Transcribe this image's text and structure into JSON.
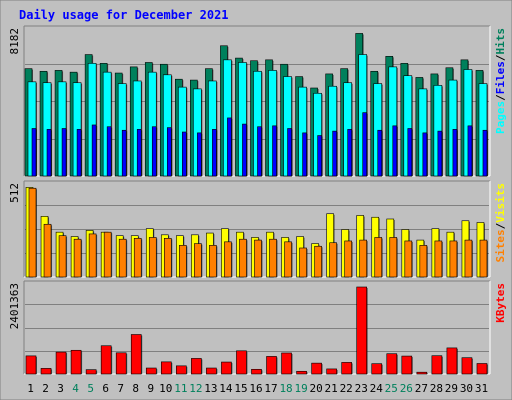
{
  "colors": {
    "background": "#c0c0c0",
    "title": "#0000ff",
    "hits": "#00805c",
    "files": "#00c0ff",
    "pages": "#00ffff",
    "visits": "#ffff00",
    "sites": "#ff8000",
    "kbytes": "#ff0000",
    "weekend_day": "#00805c",
    "weekday": "#000000"
  },
  "chart_data": {
    "type": "bar",
    "title": "Daily usage for December 2021",
    "days": [
      "1",
      "2",
      "3",
      "4",
      "5",
      "6",
      "7",
      "8",
      "9",
      "10",
      "11",
      "12",
      "13",
      "14",
      "15",
      "16",
      "17",
      "18",
      "19",
      "20",
      "21",
      "22",
      "23",
      "24",
      "25",
      "26",
      "27",
      "28",
      "29",
      "30",
      "31"
    ],
    "weekend_days": [
      "4",
      "5",
      "11",
      "12",
      "18",
      "19",
      "25",
      "26"
    ],
    "panels": [
      {
        "name": "hits-files-pages",
        "ymax": 8182,
        "ymax_label": "8182",
        "legend": [
          {
            "label": "Pages",
            "color": "#00ffff"
          },
          {
            "label": "/",
            "color": "#000000"
          },
          {
            "label": "Files",
            "color": "#0000ff"
          },
          {
            "label": "/",
            "color": "#000000"
          },
          {
            "label": "Hits",
            "color": "#00805c"
          }
        ],
        "series": [
          {
            "name": "Hits",
            "color": "#00805c",
            "values": [
              6100,
              5950,
              6000,
              5900,
              6900,
              6400,
              5850,
              6200,
              6450,
              6350,
              5500,
              5450,
              6100,
              7400,
              6700,
              6550,
              6600,
              6350,
              5650,
              5000,
              5800,
              6100,
              8100,
              5950,
              6800,
              6400,
              5600,
              5800,
              6150,
              6600,
              6000
            ]
          },
          {
            "name": "Files",
            "color": "#00ffff",
            "values": [
              5350,
              5300,
              5350,
              5300,
              6400,
              5900,
              5250,
              5400,
              5900,
              5750,
              5050,
              4950,
              5400,
              6600,
              6450,
              5950,
              6000,
              5650,
              5050,
              4700,
              5100,
              5300,
              6900,
              5250,
              6200,
              5700,
              4950,
              5150,
              5450,
              6050,
              5250
            ]
          },
          {
            "name": "Pages",
            "color": "#0000ff",
            "values": [
              2700,
              2650,
              2700,
              2650,
              2900,
              2800,
              2600,
              2650,
              2800,
              2750,
              2500,
              2450,
              2650,
              3300,
              2950,
              2800,
              2850,
              2700,
              2450,
              2300,
              2550,
              2650,
              3600,
              2600,
              2850,
              2700,
              2450,
              2550,
              2650,
              2850,
              2600
            ]
          }
        ]
      },
      {
        "name": "visits-sites",
        "ymax": 512,
        "ymax_label": "512",
        "legend": [
          {
            "label": "Sites",
            "color": "#ff8000"
          },
          {
            "label": "/",
            "color": "#000000"
          },
          {
            "label": "Visits",
            "color": "#ffff00"
          }
        ],
        "series": [
          {
            "name": "Visits",
            "color": "#ffff00",
            "values": [
              510,
              345,
              255,
              230,
              265,
              255,
              235,
              235,
              275,
              240,
              235,
              240,
              250,
              275,
              255,
              225,
              255,
              225,
              230,
              190,
              360,
              270,
              350,
              340,
              330,
              270,
              210,
              275,
              255,
              320,
              310
            ]
          },
          {
            "name": "Sites",
            "color": "#ff8000",
            "values": [
              505,
              300,
              235,
              215,
              245,
              255,
              215,
              220,
              225,
              220,
              180,
              190,
              180,
              200,
              215,
              210,
              215,
              200,
              165,
              175,
              195,
              205,
              210,
              225,
              225,
              205,
              180,
              205,
              205,
              210,
              210
            ]
          }
        ]
      },
      {
        "name": "kbytes",
        "ymax": 2401363,
        "ymax_label": "2401363",
        "legend": [
          {
            "label": "KBytes",
            "color": "#ff0000"
          }
        ],
        "series": [
          {
            "name": "KBytes",
            "color": "#ff0000",
            "values": [
              500000,
              155000,
              605000,
              655000,
              120000,
              780000,
              585000,
              1090000,
              165000,
              335000,
              225000,
              430000,
              165000,
              330000,
              640000,
              130000,
              485000,
              580000,
              75000,
              300000,
              140000,
              320000,
              2401363,
              285000,
              560000,
              495000,
              50000,
              505000,
              720000,
              450000,
              290000
            ]
          }
        ]
      }
    ]
  }
}
